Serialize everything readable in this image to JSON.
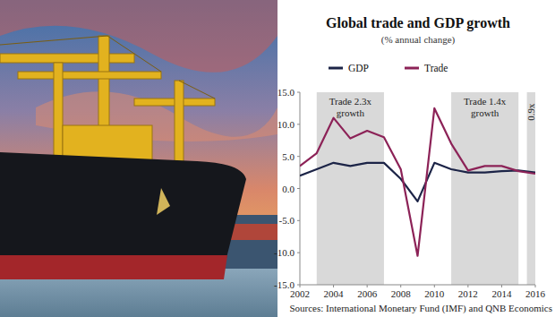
{
  "chart_data": {
    "type": "line",
    "title": "Global trade and GDP growth",
    "subtitle": "(% annual change)",
    "x": [
      2002,
      2003,
      2004,
      2005,
      2006,
      2007,
      2008,
      2009,
      2010,
      2011,
      2012,
      2013,
      2014,
      2015,
      2016
    ],
    "series": [
      {
        "name": "GDP",
        "color": "#1c2447",
        "values": [
          2.0,
          3.0,
          4.0,
          3.5,
          4.0,
          4.0,
          1.5,
          -2.0,
          4.0,
          3.0,
          2.5,
          2.5,
          2.7,
          2.8,
          2.5
        ]
      },
      {
        "name": "Trade",
        "color": "#8c2257",
        "values": [
          3.5,
          5.5,
          11.0,
          7.8,
          9.0,
          8.0,
          3.0,
          -10.5,
          12.5,
          7.0,
          2.8,
          3.5,
          3.5,
          2.7,
          2.3
        ]
      }
    ],
    "xlim": [
      2002,
      2016
    ],
    "xticks": [
      2002,
      2004,
      2006,
      2008,
      2010,
      2012,
      2014,
      2016
    ],
    "ylim": [
      -15,
      15
    ],
    "yticks": [
      {
        "value": -15,
        "label": "-15.0"
      },
      {
        "value": -10,
        "label": "-10.0"
      },
      {
        "value": -5,
        "label": "-5.0"
      },
      {
        "value": 0,
        "label": "0.0"
      },
      {
        "value": 5,
        "label": "5.0"
      },
      {
        "value": 10,
        "label": "10.0"
      },
      {
        "value": 15,
        "label": "15.0"
      }
    ],
    "annotations": [
      {
        "text": "Trade 2.3x growth",
        "x_range": [
          2003,
          2007
        ]
      },
      {
        "text": "Trade 1.4x growth",
        "x_range": [
          2011,
          2015
        ]
      },
      {
        "text": "0.9x",
        "x_range": [
          2015.5,
          2016
        ]
      }
    ],
    "source": "Sources: International Monetary Fund (IMF) and QNB Economics",
    "grid": false,
    "legend": "top"
  }
}
